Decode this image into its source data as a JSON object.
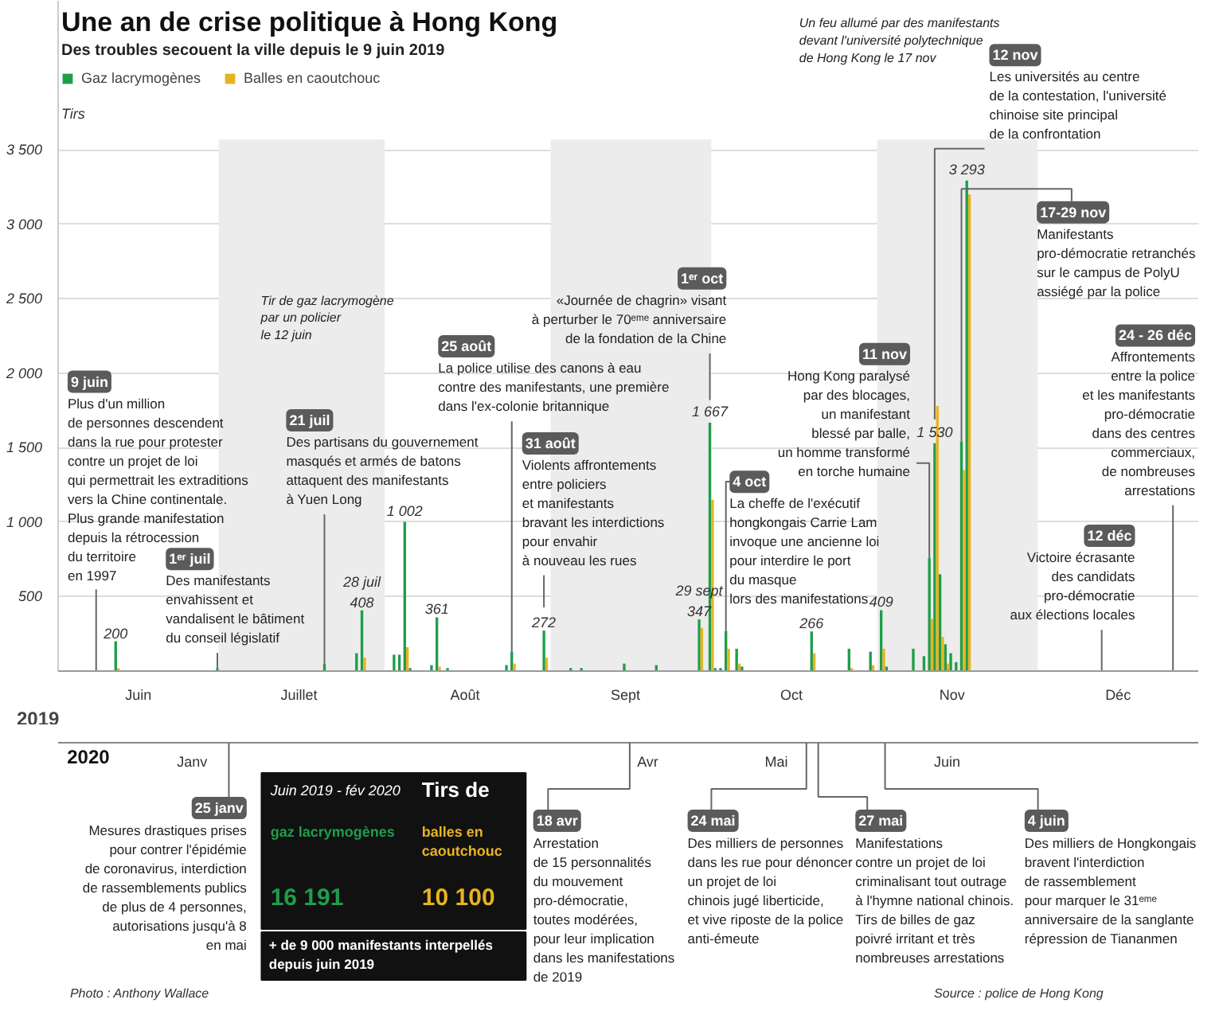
{
  "chart_data": [
    {
      "type": "bar",
      "title": "Une an de crise politique à Hong Kong",
      "subtitle": "Des troubles secouent la ville depuis le 9 juin 2019",
      "ylabel": "Tirs",
      "xlabel": "2019",
      "x": [
        "2019-06-12",
        "2019-07-01",
        "2019-07-21",
        "2019-07-27",
        "2019-07-28",
        "2019-08-03",
        "2019-08-04",
        "2019-08-05",
        "2019-08-06",
        "2019-08-10",
        "2019-08-11",
        "2019-08-13",
        "2019-08-24",
        "2019-08-25",
        "2019-08-31",
        "2019-09-05",
        "2019-09-07",
        "2019-09-15",
        "2019-09-21",
        "2019-09-29",
        "2019-10-01",
        "2019-10-02",
        "2019-10-03",
        "2019-10-04",
        "2019-10-06",
        "2019-10-07",
        "2019-10-20",
        "2019-10-27",
        "2019-10-31",
        "2019-11-02",
        "2019-11-03",
        "2019-11-08",
        "2019-11-10",
        "2019-11-11",
        "2019-11-12",
        "2019-11-13",
        "2019-11-14",
        "2019-11-15",
        "2019-11-16",
        "2019-11-17",
        "2019-11-18"
      ],
      "series": [
        {
          "name": "Gaz lacrymogènes",
          "color": "#1e9e4a",
          "values": [
            200,
            20,
            50,
            120,
            408,
            110,
            110,
            1002,
            20,
            40,
            361,
            20,
            40,
            130,
            272,
            20,
            20,
            50,
            40,
            347,
            1667,
            20,
            20,
            270,
            150,
            30,
            266,
            150,
            130,
            409,
            30,
            150,
            100,
            760,
            1530,
            650,
            180,
            120,
            60,
            1540,
            3293
          ],
          "value_labels": [
            "200",
            null,
            null,
            null,
            "408",
            null,
            null,
            "1 002",
            null,
            null,
            "361",
            null,
            null,
            null,
            "272",
            null,
            null,
            null,
            null,
            "347",
            "1 667",
            null,
            null,
            null,
            null,
            null,
            "266",
            null,
            null,
            "409",
            null,
            null,
            null,
            null,
            "1 530",
            null,
            null,
            null,
            null,
            null,
            "3 293"
          ]
        },
        {
          "name": "Balles en caoutchouc",
          "color": "#e8b321",
          "values": [
            20,
            null,
            null,
            null,
            90,
            null,
            null,
            160,
            null,
            null,
            30,
            null,
            null,
            50,
            90,
            null,
            null,
            null,
            null,
            290,
            1150,
            null,
            null,
            150,
            50,
            null,
            120,
            20,
            40,
            150,
            null,
            null,
            null,
            350,
            1780,
            230,
            50,
            null,
            null,
            1350,
            3200
          ]
        }
      ],
      "xlim": [
        "2019-06-01",
        "2019-12-31"
      ],
      "xticks": [
        {
          "value": "2019-06-16",
          "label": "Juin"
        },
        {
          "value": "2019-07-16",
          "label": "Juillet"
        },
        {
          "value": "2019-08-16",
          "label": "Août"
        },
        {
          "value": "2019-09-15",
          "label": "Sept"
        },
        {
          "value": "2019-10-16",
          "label": "Oct"
        },
        {
          "value": "2019-11-15",
          "label": "Nov"
        },
        {
          "value": "2019-12-16",
          "label": "Déc"
        }
      ],
      "ylim": [
        0,
        4500
      ],
      "yticks": [
        500,
        {
          "value": 1000,
          "label": "1 000"
        },
        {
          "value": 1500,
          "label": "1 500"
        },
        {
          "value": 2000,
          "label": "2 000"
        },
        {
          "value": 2500,
          "label": "2 500"
        },
        {
          "value": 3000,
          "label": "3 000"
        },
        {
          "value": 3500,
          "label": "3 500"
        }
      ],
      "grid": "y",
      "legend": "top left",
      "bands": [
        {
          "axis": "x",
          "from": "2019-07-01",
          "to": "2019-08-01",
          "color": "#ececec"
        },
        {
          "axis": "x",
          "from": "2019-09-01",
          "to": "2019-10-01",
          "color": "#ececec"
        },
        {
          "axis": "x",
          "from": "2019-11-01",
          "to": "2019-12-01",
          "color": "#ececec"
        }
      ],
      "annotations": [
        "9 juin\nPlus d'un million\nde personnes descendent\ndans la rue pour protester\ncontre un projet de loi\nqui permettrait les extraditions\nvers la Chine continentale.\nPlus grande manifestation\ndepuis la rétrocession\ndu territoire\nen 1997",
        {
          "text": "1ᵉʳ juil\nDes manifestants\nenvahissent et\nvandalisent le bâtiment\ndu conseil législatif",
          "x": "2019-07-01",
          "y": 20
        },
        {
          "text": "21 juil\nDes partisans du gouvernement\nmasqués et armés de batons\nattaquent des manifestants\nà Yuen Long",
          "x": "2019-07-21",
          "y": 50
        },
        {
          "text": "25 août\nLa police utilise des canons à eau\ncontre des manifestants, une première\ndans l'ex-colonie britannique",
          "x": "2019-08-25",
          "y": 130
        },
        "31 août\nViolents affrontements\nentre policiers\net manifestants\nbravant les interdictions\npour envahir\nà nouveau les rues",
        {
          "text": "1ᵉʳ oct\n«Journée de chagrin» visant\nà perturber le 70ᵉᵐᵉ anniversaire\nde la fondation de la Chine",
          "x": "2019-10-01",
          "y": 1820
        },
        {
          "text": "4 oct\nLa cheffe de l'exécutif\nhongkongais Carrie Lam\ninvoque une ancienne loi\npour interdire le port\ndu masque\nlors des manifestations",
          "x": "2019-10-04",
          "y": 270
        },
        {
          "text": "11 nov\nHong Kong paralysé\npar des blocages,\nun manifestant\nblessé par balle,\nun homme transformé\nen torche humaine",
          "x": "2019-11-11",
          "y": 760
        },
        {
          "text": "12 nov\nLes universités au centre\nde la contestation, l'université\nchinoise site principal\nde la confrontation",
          "x": "2019-11-12",
          "y": 1690
        },
        {
          "text": "17-29 nov\nManifestants\npro-démocratie retranchés\nsur le campus de PolyU\nassiégé par la police",
          "x": "2019-11-17",
          "y": 1540
        },
        "24 - 26 déc\nAffrontements\nentre la police\net les manifestants\npro-démocratie\ndans des centres\ncommerciaux,\nde nombreuses\narrestations",
        "12 déc\nVictoire écrasante\ndes candidats\npro-démocratie\naux élections locales",
        {
          "text": "28 juil",
          "x": "2019-07-28",
          "y": 408
        },
        {
          "text": "29 sept",
          "x": "2019-09-29",
          "y": 347
        },
        "Tir de gaz lacrymogène\npar un policier\nle 12 juin",
        "Un feu allumé par des manifestants\ndevant l'université  polytechnique\nde Hong Kong le 17 nov"
      ]
    },
    {
      "type": "other",
      "title": "2020",
      "categories": [
        "Janv",
        "Avr",
        "Mai",
        "Juin"
      ],
      "annotations": [
        "25 janv\nMesures drastiques prises\npour contrer l'épidémie\nde coronavirus, interdiction\nde rassemblements publics\nde plus de 4 personnes,\nautorisations jusqu'à 8\nen mai",
        "18 avr\nArrestation\nde 15 personnalités\ndu  mouvement\npro-démocratie,\ntoutes modérées,\npour leur implication\ndans les manifestations\nde 2019",
        "24 mai\nDes milliers de personnes\ndans les rue pour dénoncer\nun projet de loi\nchinois jugé liberticide,\net vive riposte de la police\nanti-émeute",
        "27 mai\nManifestations\ncontre un projet de loi\ncriminalisant tout outrage\nà l'hymne national chinois.\nTirs de billes de gaz\npoivré irritant et très\nnombreuses arrestations",
        "4 juin\nDes milliers de Hongkongais\nbravent l'interdiction\nde rassemblement\npour marquer le 31ᵉᵐᵉ\nanniversaire de la sanglante\nrépression de Tiananmen",
        "Juin 2019 - fév 2020",
        "Tirs de",
        "gaz lacrymogènes",
        "balles en\ncaoutchouc",
        "16 191",
        "10 100",
        "+ de 9 000 manifestants interpellés\ndepuis juin 2019",
        "Photo : Anthony Wallace",
        "Source : police de Hong Kong"
      ]
    }
  ]
}
